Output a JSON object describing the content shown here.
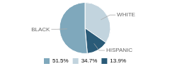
{
  "chart_data": {
    "type": "pie",
    "categories": [
      "WHITE",
      "HISPANIC",
      "BLACK"
    ],
    "values": [
      34.7,
      13.9,
      51.5
    ],
    "colors": [
      "#c2d4de",
      "#2a5b78",
      "#7fa8bc"
    ],
    "legend": "bottom",
    "legend_entries": [
      {
        "label": "51.5%",
        "color": "#7fa8bc"
      },
      {
        "label": "34.7%",
        "color": "#c2d4de"
      },
      {
        "label": "13.9%",
        "color": "#2a5b78"
      }
    ]
  }
}
